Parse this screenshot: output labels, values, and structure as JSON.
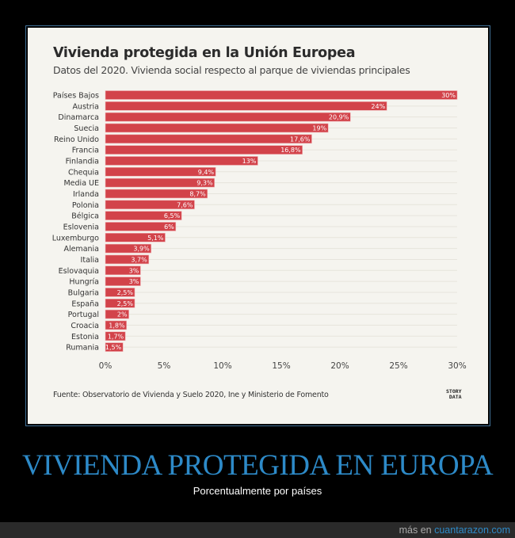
{
  "chart_data": {
    "type": "bar",
    "orientation": "horizontal",
    "title": "Vivienda protegida en la Unión Europea",
    "subtitle": "Datos del 2020. Vivienda social respecto al parque de viviendas principales",
    "categories": [
      "Países Bajos",
      "Austria",
      "Dinamarca",
      "Suecia",
      "Reino Unido",
      "Francia",
      "Finlandia",
      "Chequia",
      "Media UE",
      "Irlanda",
      "Polonia",
      "Bélgica",
      "Eslovenia",
      "Luxemburgo",
      "Alemania",
      "Italia",
      "Eslovaquia",
      "Hungría",
      "Bulgaria",
      "España",
      "Portugal",
      "Croacia",
      "Estonia",
      "Rumania"
    ],
    "values": [
      30,
      24,
      20.9,
      19,
      17.6,
      16.8,
      13,
      9.4,
      9.3,
      8.7,
      7.6,
      6.5,
      6,
      5.1,
      3.9,
      3.7,
      3,
      3,
      2.5,
      2.5,
      2,
      1.8,
      1.7,
      1.5
    ],
    "data_labels": [
      "30%",
      "24%",
      "20,9%",
      "19%",
      "17,6%",
      "16,8%",
      "13%",
      "9,4%",
      "9,3%",
      "8,7%",
      "7,6%",
      "6,5%",
      "6%",
      "5,1%",
      "3,9%",
      "3,7%",
      "3%",
      "3%",
      "2,5%",
      "2,5%",
      "2%",
      "1,8%",
      "1,7%",
      "1,5%"
    ],
    "xlim": [
      0,
      30
    ],
    "xticks": [
      "0%",
      "5%",
      "10%",
      "15%",
      "20%",
      "25%",
      "30%"
    ],
    "grid": true,
    "bar_color": "#d2434a",
    "source": "Fuente: Observatorio de Vivienda y Suelo 2020, Ine y Ministerio de Fomento",
    "logo": "STORY DATA"
  },
  "post": {
    "title": "VIVIENDA PROTEGIDA EN EUROPA",
    "subtitle": "Porcentualmente por países",
    "footer_prefix": "más en",
    "footer_link": "cuantarazon.com"
  }
}
